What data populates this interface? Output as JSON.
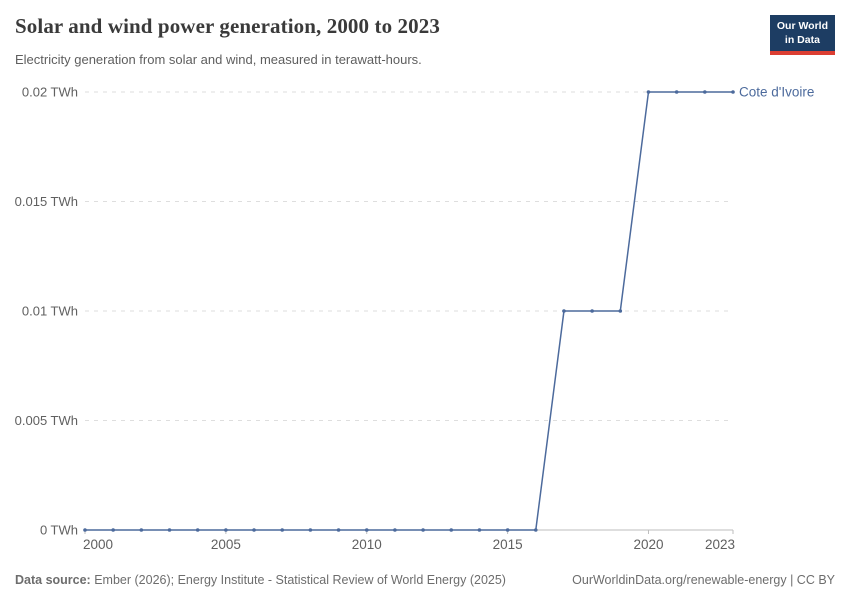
{
  "header": {
    "title": "Solar and wind power generation, 2000 to 2023",
    "subtitle": "Electricity generation from solar and wind, measured in terawatt-hours.",
    "logo": {
      "line1": "Our World",
      "line2": "in Data"
    }
  },
  "footer": {
    "source_label": "Data source:",
    "source_text": " Ember (2026); Energy Institute - Statistical Review of World Energy (2025)",
    "link_text": "OurWorldinData.org/renewable-energy | CC BY"
  },
  "colors": {
    "series_blue": "#4c6a9c",
    "grid": "#dedede",
    "axis": "#bdbdbd",
    "tick_text": "#606060",
    "logo_navy": "#1d3d63",
    "logo_red": "#dc3e32"
  },
  "chart_data": {
    "type": "line",
    "title": "Solar and wind power generation, 2000 to 2023",
    "subtitle": "Electricity generation from solar and wind, measured in terawatt-hours.",
    "xlabel": "",
    "ylabel": "TWh",
    "xlim": [
      2000,
      2023
    ],
    "ylim": [
      0,
      0.02
    ],
    "grid": "horizontal-dashed",
    "legend_position": "right-end-of-line",
    "x": [
      2000,
      2001,
      2002,
      2003,
      2004,
      2005,
      2006,
      2007,
      2008,
      2009,
      2010,
      2011,
      2012,
      2013,
      2014,
      2015,
      2016,
      2017,
      2018,
      2019,
      2020,
      2021,
      2022,
      2023
    ],
    "series": [
      {
        "name": "Cote d'Ivoire",
        "color": "#4c6a9c",
        "values": [
          0,
          0,
          0,
          0,
          0,
          0,
          0,
          0,
          0,
          0,
          0,
          0,
          0,
          0,
          0,
          0,
          0,
          0.01,
          0.01,
          0.01,
          0.02,
          0.02,
          0.02,
          0.02
        ]
      }
    ],
    "x_ticks": [
      {
        "value": 2000,
        "label": "2000"
      },
      {
        "value": 2005,
        "label": "2005"
      },
      {
        "value": 2010,
        "label": "2010"
      },
      {
        "value": 2015,
        "label": "2015"
      },
      {
        "value": 2020,
        "label": "2020"
      },
      {
        "value": 2023,
        "label": "2023"
      }
    ],
    "y_ticks": [
      {
        "value": 0,
        "label": "0 TWh"
      },
      {
        "value": 0.005,
        "label": "0.005 TWh"
      },
      {
        "value": 0.01,
        "label": "0.01 TWh"
      },
      {
        "value": 0.015,
        "label": "0.015 TWh"
      },
      {
        "value": 0.02,
        "label": "0.02 TWh"
      }
    ]
  }
}
